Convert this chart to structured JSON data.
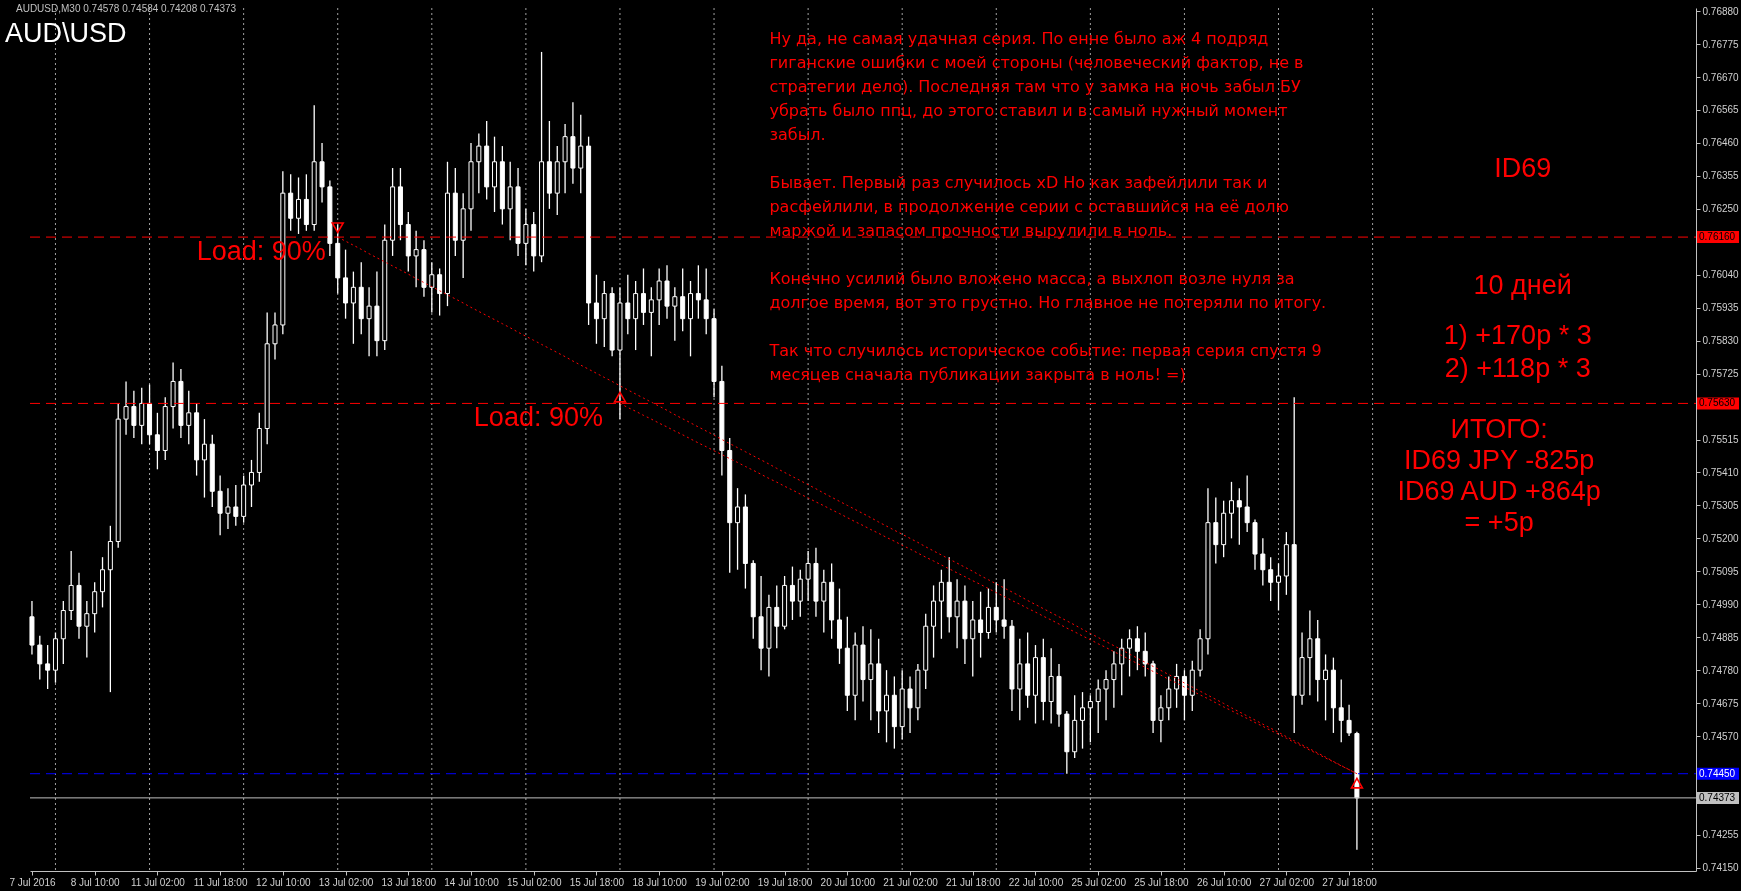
{
  "chart_data": {
    "type": "candlestick",
    "title": "AUD\\USD",
    "subtitle": "AUDUSD,M30 0.74578 0.74584 0.74208 0.74373",
    "categories": [
      "7 Jul 2016",
      null,
      null,
      null,
      null,
      null,
      null,
      null,
      "8 Jul 10:00",
      null,
      null,
      null,
      null,
      null,
      null,
      null,
      "11 Jul 02:00",
      null,
      null,
      null,
      null,
      null,
      null,
      null,
      "11 Jul 18:00",
      null,
      null,
      null,
      null,
      null,
      null,
      null,
      "12 Jul 10:00",
      null,
      null,
      null,
      null,
      null,
      null,
      null,
      "13 Jul 02:00",
      null,
      null,
      null,
      null,
      null,
      null,
      null,
      "13 Jul 18:00",
      null,
      null,
      null,
      null,
      null,
      null,
      null,
      "14 Jul 10:00",
      null,
      null,
      null,
      null,
      null,
      null,
      null,
      "15 Jul 02:00",
      null,
      null,
      null,
      null,
      null,
      null,
      null,
      "15 Jul 18:00",
      null,
      null,
      null,
      null,
      null,
      null,
      null,
      "18 Jul 10:00",
      null,
      null,
      null,
      null,
      null,
      null,
      null,
      "19 Jul 02:00",
      null,
      null,
      null,
      null,
      null,
      null,
      null,
      "19 Jul 18:00",
      null,
      null,
      null,
      null,
      null,
      null,
      null,
      "20 Jul 10:00",
      null,
      null,
      null,
      null,
      null,
      null,
      null,
      "21 Jul 02:00",
      null,
      null,
      null,
      null,
      null,
      null,
      null,
      "21 Jul 18:00",
      null,
      null,
      null,
      null,
      null,
      null,
      null,
      "22 Jul 10:00",
      null,
      null,
      null,
      null,
      null,
      null,
      null,
      "25 Jul 02:00",
      null,
      null,
      null,
      null,
      null,
      null,
      null,
      "25 Jul 18:00",
      null,
      null,
      null,
      null,
      null,
      null,
      null,
      "26 Jul 10:00",
      null,
      null,
      null,
      null,
      null,
      null,
      null,
      "27 Jul 02:00",
      null,
      null,
      null,
      null,
      null,
      null,
      null,
      "27 Jul 18:00",
      null,
      null,
      null,
      null,
      null,
      null,
      null,
      null,
      null,
      null,
      null,
      null,
      null,
      null,
      null,
      null,
      null,
      null,
      null,
      null,
      null,
      null,
      null,
      null,
      null,
      null,
      null,
      null,
      null,
      null,
      null,
      null,
      null,
      null,
      null,
      null,
      null,
      null,
      null,
      null,
      null,
      null,
      null,
      null
    ],
    "ylim": [
      0.7414,
      0.7689
    ],
    "yticks": [
      {
        "value": 0.7415,
        "label": "0.74150"
      },
      0.74255,
      {
        "value": 0.7436,
        "label": null
      },
      {
        "value": 0.74465,
        "label": null
      },
      {
        "value": 0.7457,
        "label": "0.74570"
      },
      0.74675,
      {
        "value": 0.7478,
        "label": "0.74780"
      },
      0.74885,
      {
        "value": 0.7499,
        "label": "0.74990"
      },
      0.75095,
      {
        "value": 0.752,
        "label": "0.75200"
      },
      0.75305,
      {
        "value": 0.7541,
        "label": "0.75410"
      },
      0.75515,
      {
        "value": 0.7562,
        "label": null
      },
      0.75725,
      {
        "value": 0.7583,
        "label": "0.75830"
      },
      0.75935,
      {
        "value": 0.7604,
        "label": "0.76040"
      },
      {
        "value": 0.76145,
        "label": null
      },
      {
        "value": 0.7625,
        "label": "0.76250"
      },
      0.76355,
      {
        "value": 0.7646,
        "label": "0.76460"
      },
      0.76565,
      {
        "value": 0.7667,
        "label": "0.76670"
      },
      0.76775,
      {
        "value": 0.7688,
        "label": "0.76880"
      }
    ],
    "series": [
      {
        "color": "#ffffff",
        "ohlc": [
          [
            0.7495,
            0.75,
            0.7483,
            0.7486
          ],
          [
            0.7486,
            0.7489,
            0.7475,
            0.748
          ],
          [
            0.748,
            0.7486,
            0.7472,
            0.7478
          ],
          [
            0.7478,
            0.749,
            0.7474,
            0.7488
          ],
          [
            0.7488,
            0.75,
            0.748,
            0.7497
          ],
          [
            0.7497,
            0.7516,
            0.7494,
            0.7505
          ],
          [
            0.7505,
            0.7509,
            0.7488,
            0.7492
          ],
          [
            0.7492,
            0.75,
            0.7482,
            0.7496
          ],
          [
            0.7496,
            0.7506,
            0.749,
            0.7503
          ],
          [
            0.7503,
            0.7514,
            0.7498,
            0.751
          ],
          [
            0.751,
            0.7524,
            0.7471,
            0.7519
          ],
          [
            0.7519,
            0.7563,
            0.7517,
            0.7558
          ],
          [
            0.7558,
            0.757,
            0.7553,
            0.7562
          ],
          [
            0.7562,
            0.7567,
            0.7552,
            0.7556
          ],
          [
            0.7556,
            0.7568,
            0.755,
            0.7563
          ],
          [
            0.7563,
            0.7569,
            0.755,
            0.7553
          ],
          [
            0.7553,
            0.756,
            0.7542,
            0.7548
          ],
          [
            0.7548,
            0.7565,
            0.7545,
            0.7562
          ],
          [
            0.7562,
            0.7576,
            0.7555,
            0.757
          ],
          [
            0.757,
            0.7574,
            0.7552,
            0.7556
          ],
          [
            0.7556,
            0.7567,
            0.755,
            0.756
          ],
          [
            0.756,
            0.7563,
            0.754,
            0.7545
          ],
          [
            0.7545,
            0.7558,
            0.7533,
            0.755
          ],
          [
            0.755,
            0.7553,
            0.753,
            0.7535
          ],
          [
            0.7535,
            0.754,
            0.7521,
            0.7528
          ],
          [
            0.7528,
            0.7536,
            0.7523,
            0.753
          ],
          [
            0.753,
            0.7537,
            0.7524,
            0.7527
          ],
          [
            0.7527,
            0.754,
            0.7525,
            0.7537
          ],
          [
            0.7537,
            0.7545,
            0.753,
            0.7541
          ],
          [
            0.7541,
            0.756,
            0.7538,
            0.7555
          ],
          [
            0.7555,
            0.7592,
            0.755,
            0.7582
          ],
          [
            0.7582,
            0.7592,
            0.7577,
            0.7588
          ],
          [
            0.7588,
            0.7637,
            0.7585,
            0.763
          ],
          [
            0.763,
            0.7636,
            0.7618,
            0.7622
          ],
          [
            0.7622,
            0.7635,
            0.7617,
            0.7628
          ],
          [
            0.7628,
            0.7636,
            0.7618,
            0.762
          ],
          [
            0.762,
            0.7658,
            0.7618,
            0.764
          ],
          [
            0.764,
            0.7646,
            0.7627,
            0.7632
          ],
          [
            0.7632,
            0.7634,
            0.761,
            0.7614
          ],
          [
            0.7614,
            0.762,
            0.7598,
            0.7603
          ],
          [
            0.7603,
            0.7612,
            0.759,
            0.7595
          ],
          [
            0.7595,
            0.7605,
            0.7582,
            0.76
          ],
          [
            0.76,
            0.7608,
            0.7585,
            0.759
          ],
          [
            0.759,
            0.76,
            0.7578,
            0.7594
          ],
          [
            0.7594,
            0.7605,
            0.7578,
            0.7583
          ],
          [
            0.7583,
            0.762,
            0.758,
            0.7615
          ],
          [
            0.7615,
            0.7638,
            0.761,
            0.7632
          ],
          [
            0.7632,
            0.7638,
            0.7615,
            0.762
          ],
          [
            0.762,
            0.7624,
            0.7605,
            0.761
          ],
          [
            0.761,
            0.7618,
            0.76,
            0.7612
          ],
          [
            0.7612,
            0.7615,
            0.7597,
            0.76
          ],
          [
            0.76,
            0.7608,
            0.7592,
            0.7604
          ],
          [
            0.7604,
            0.7606,
            0.7591,
            0.7598
          ],
          [
            0.7598,
            0.764,
            0.7594,
            0.763
          ],
          [
            0.763,
            0.7638,
            0.761,
            0.7615
          ],
          [
            0.7615,
            0.763,
            0.7603,
            0.7625
          ],
          [
            0.7625,
            0.7646,
            0.7618,
            0.764
          ],
          [
            0.764,
            0.7649,
            0.763,
            0.7645
          ],
          [
            0.7645,
            0.7653,
            0.7628,
            0.7632
          ],
          [
            0.7632,
            0.7648,
            0.7624,
            0.764
          ],
          [
            0.764,
            0.7645,
            0.762,
            0.7625
          ],
          [
            0.7625,
            0.764,
            0.7615,
            0.7632
          ],
          [
            0.7632,
            0.7638,
            0.761,
            0.7614
          ],
          [
            0.7614,
            0.7625,
            0.7607,
            0.762
          ],
          [
            0.762,
            0.7624,
            0.7605,
            0.761
          ],
          [
            0.761,
            0.7675,
            0.7608,
            0.764
          ],
          [
            0.764,
            0.7653,
            0.7625,
            0.763
          ],
          [
            0.763,
            0.7645,
            0.7623,
            0.764
          ],
          [
            0.764,
            0.7652,
            0.763,
            0.7648
          ],
          [
            0.7648,
            0.7659,
            0.7633,
            0.7638
          ],
          [
            0.7638,
            0.7655,
            0.763,
            0.7645
          ],
          [
            0.7645,
            0.7648,
            0.7588,
            0.7595
          ],
          [
            0.7595,
            0.7604,
            0.7582,
            0.759
          ],
          [
            0.759,
            0.7602,
            0.7581,
            0.7598
          ],
          [
            0.7598,
            0.76,
            0.7578,
            0.758
          ],
          [
            0.758,
            0.76,
            0.7558,
            0.7595
          ],
          [
            0.7595,
            0.7604,
            0.7585,
            0.759
          ],
          [
            0.759,
            0.7602,
            0.758,
            0.7598
          ],
          [
            0.7598,
            0.7606,
            0.7588,
            0.7592
          ],
          [
            0.7592,
            0.76,
            0.7578,
            0.7596
          ],
          [
            0.7596,
            0.7606,
            0.7588,
            0.7602
          ],
          [
            0.7602,
            0.7607,
            0.759,
            0.7594
          ],
          [
            0.7594,
            0.76,
            0.7583,
            0.7597
          ],
          [
            0.7597,
            0.7606,
            0.7586,
            0.759
          ],
          [
            0.759,
            0.7602,
            0.7578,
            0.7598
          ],
          [
            0.7598,
            0.7607,
            0.759,
            0.7596
          ],
          [
            0.7596,
            0.7606,
            0.7585,
            0.759
          ],
          [
            0.759,
            0.7593,
            0.7565,
            0.757
          ],
          [
            0.757,
            0.7575,
            0.754,
            0.7548
          ],
          [
            0.7548,
            0.7552,
            0.7509,
            0.7525
          ],
          [
            0.7525,
            0.7536,
            0.751,
            0.753
          ],
          [
            0.753,
            0.7534,
            0.7504,
            0.7512
          ],
          [
            0.7512,
            0.7513,
            0.7488,
            0.7495
          ],
          [
            0.7495,
            0.7508,
            0.7478,
            0.7485
          ],
          [
            0.7485,
            0.7502,
            0.7476,
            0.7498
          ],
          [
            0.7498,
            0.7505,
            0.7485,
            0.7492
          ],
          [
            0.7492,
            0.7508,
            0.7491,
            0.7505
          ],
          [
            0.7505,
            0.7511,
            0.7494,
            0.75
          ],
          [
            0.75,
            0.751,
            0.7495,
            0.7507
          ],
          [
            0.7507,
            0.7516,
            0.75,
            0.7512
          ],
          [
            0.7512,
            0.7517,
            0.7495,
            0.75
          ],
          [
            0.75,
            0.751,
            0.749,
            0.7506
          ],
          [
            0.7506,
            0.7512,
            0.7488,
            0.7494
          ],
          [
            0.7494,
            0.7504,
            0.748,
            0.7485
          ],
          [
            0.7485,
            0.7495,
            0.7465,
            0.747
          ],
          [
            0.747,
            0.749,
            0.7462,
            0.7486
          ],
          [
            0.7486,
            0.7492,
            0.7468,
            0.7475
          ],
          [
            0.7475,
            0.7491,
            0.7462,
            0.748
          ],
          [
            0.748,
            0.7488,
            0.7458,
            0.7465
          ],
          [
            0.7465,
            0.7478,
            0.7455,
            0.747
          ],
          [
            0.747,
            0.7476,
            0.7453,
            0.746
          ],
          [
            0.746,
            0.7478,
            0.7456,
            0.7472
          ],
          [
            0.7472,
            0.7476,
            0.7458,
            0.7466
          ],
          [
            0.7466,
            0.748,
            0.7462,
            0.7478
          ],
          [
            0.7478,
            0.7496,
            0.7472,
            0.7492
          ],
          [
            0.7492,
            0.7505,
            0.7482,
            0.75
          ],
          [
            0.75,
            0.751,
            0.7488,
            0.7506
          ],
          [
            0.7506,
            0.7514,
            0.749,
            0.7495
          ],
          [
            0.7495,
            0.7507,
            0.7485,
            0.75
          ],
          [
            0.75,
            0.7505,
            0.748,
            0.7488
          ],
          [
            0.7488,
            0.75,
            0.7476,
            0.7494
          ],
          [
            0.7494,
            0.7503,
            0.7482,
            0.749
          ],
          [
            0.749,
            0.7504,
            0.7488,
            0.7498
          ],
          [
            0.7498,
            0.7506,
            0.749,
            0.7494
          ],
          [
            0.7494,
            0.7507,
            0.7488,
            0.7492
          ],
          [
            0.7492,
            0.7494,
            0.7465,
            0.7472
          ],
          [
            0.7472,
            0.7488,
            0.7462,
            0.748
          ],
          [
            0.748,
            0.749,
            0.7466,
            0.747
          ],
          [
            0.747,
            0.7486,
            0.7461,
            0.7482
          ],
          [
            0.7482,
            0.7488,
            0.7462,
            0.7468
          ],
          [
            0.7468,
            0.7485,
            0.7461,
            0.7476
          ],
          [
            0.7476,
            0.748,
            0.746,
            0.7464
          ],
          [
            0.7464,
            0.7465,
            0.7445,
            0.7452
          ],
          [
            0.7452,
            0.747,
            0.745,
            0.7462
          ],
          [
            0.7462,
            0.7471,
            0.7453,
            0.7466
          ],
          [
            0.7466,
            0.747,
            0.7455,
            0.7468
          ],
          [
            0.7468,
            0.7475,
            0.7458,
            0.7472
          ],
          [
            0.7472,
            0.7478,
            0.7462,
            0.7475
          ],
          [
            0.7475,
            0.7484,
            0.7466,
            0.748
          ],
          [
            0.748,
            0.7488,
            0.747,
            0.7485
          ],
          [
            0.7485,
            0.7491,
            0.7476,
            0.7488
          ],
          [
            0.7488,
            0.7492,
            0.7478,
            0.7484
          ],
          [
            0.7484,
            0.749,
            0.7476,
            0.748
          ],
          [
            0.748,
            0.7481,
            0.7458,
            0.7462
          ],
          [
            0.7462,
            0.747,
            0.7455,
            0.7466
          ],
          [
            0.7466,
            0.7476,
            0.7462,
            0.7472
          ],
          [
            0.7472,
            0.748,
            0.7466,
            0.7476
          ],
          [
            0.7476,
            0.7478,
            0.7462,
            0.747
          ],
          [
            0.747,
            0.7481,
            0.7465,
            0.7478
          ],
          [
            0.7478,
            0.7491,
            0.7476,
            0.7488
          ],
          [
            0.7488,
            0.7536,
            0.7483,
            0.7525
          ],
          [
            0.7525,
            0.7533,
            0.7512,
            0.7518
          ],
          [
            0.7518,
            0.7532,
            0.7514,
            0.7528
          ],
          [
            0.7528,
            0.7538,
            0.752,
            0.7532
          ],
          [
            0.7532,
            0.7536,
            0.7518,
            0.753
          ],
          [
            0.753,
            0.754,
            0.7522,
            0.7525
          ],
          [
            0.7525,
            0.7526,
            0.751,
            0.7515
          ],
          [
            0.7515,
            0.752,
            0.7505,
            0.751
          ],
          [
            0.751,
            0.7514,
            0.75,
            0.7506
          ],
          [
            0.7506,
            0.7512,
            0.7497,
            0.7508
          ],
          [
            0.7508,
            0.7522,
            0.7502,
            0.7518
          ],
          [
            0.7518,
            0.7565,
            0.7458,
            0.747
          ],
          [
            0.747,
            0.749,
            0.7467,
            0.7482
          ],
          [
            0.7482,
            0.7497,
            0.747,
            0.7488
          ],
          [
            0.7488,
            0.7494,
            0.7468,
            0.7475
          ],
          [
            0.7475,
            0.7483,
            0.7462,
            0.7478
          ],
          [
            0.7478,
            0.7482,
            0.7458,
            0.7466
          ],
          [
            0.7466,
            0.7475,
            0.7455,
            0.7462
          ],
          [
            0.7462,
            0.7467,
            0.7457,
            0.7458
          ],
          [
            0.74578,
            0.74584,
            0.74208,
            0.74373
          ],
          null,
          null,
          null,
          null,
          null,
          null,
          null,
          null,
          null,
          null,
          null,
          null,
          null,
          null,
          null,
          null,
          null,
          null,
          null,
          null,
          null,
          null,
          null,
          null,
          null,
          null,
          null,
          null,
          null,
          null,
          null,
          null,
          null,
          null,
          null,
          null,
          null,
          null,
          null,
          null,
          null,
          null,
          null
        ]
      },
      {
        "type": "line",
        "color": "#ff0000",
        "line_style": "dotted",
        "values": [
          null,
          null,
          null,
          null,
          null,
          null,
          null,
          null,
          null,
          null,
          null,
          null,
          null,
          null,
          null,
          null,
          null,
          null,
          null,
          null,
          null,
          null,
          null,
          null,
          null,
          null,
          null,
          null,
          null,
          null,
          null,
          null,
          null,
          null,
          null,
          null,
          null,
          null,
          null,
          0.7616,
          0.76147,
          0.76134,
          0.76121,
          0.76107,
          0.76094,
          0.76081,
          0.76068,
          0.76055,
          0.76042,
          0.76028,
          0.76015,
          0.76002,
          0.75989,
          0.75976,
          0.75963,
          0.7595,
          0.75936,
          0.75923,
          0.7591,
          0.75897,
          0.75884,
          0.75871,
          0.75857,
          0.75844,
          0.75831,
          0.75818,
          0.75805,
          0.75792,
          0.75779,
          0.75765,
          0.75752,
          0.75739,
          0.75726,
          0.75713,
          0.757,
          0.75686,
          0.75673,
          0.7566,
          0.75647,
          0.75634,
          0.75621,
          0.75608,
          0.75594,
          0.75581,
          0.75568,
          0.75555,
          0.75542,
          0.75529,
          0.75515,
          0.75502,
          0.75489,
          0.75476,
          0.75463,
          0.7545,
          0.75437,
          0.75423,
          0.7541,
          0.75397,
          0.75384,
          0.75371,
          0.75358,
          0.75344,
          0.75331,
          0.75318,
          0.75305,
          0.75292,
          0.75279,
          0.75266,
          0.75252,
          0.75239,
          0.75226,
          0.75213,
          0.752,
          0.75187,
          0.75173,
          0.7516,
          0.75147,
          0.75134,
          0.75121,
          0.75108,
          0.75095,
          0.75081,
          0.75068,
          0.75055,
          0.75042,
          0.75029,
          0.75016,
          0.75002,
          0.74989,
          0.74976,
          0.74963,
          0.7495,
          0.74937,
          0.74924,
          0.7491,
          0.74897,
          0.74884,
          0.74871,
          0.74858,
          0.74845,
          0.74831,
          0.74818,
          0.74805,
          0.74792,
          0.74779,
          0.74766,
          0.74753,
          0.74739,
          0.74726,
          0.74713,
          0.747,
          0.74687,
          0.74674,
          0.7466,
          0.74647,
          0.74634,
          0.74621,
          0.74608,
          0.74595,
          0.74582,
          0.74568,
          0.74555,
          0.74542,
          0.74529,
          0.74516,
          0.74503,
          0.74489,
          0.74476,
          0.74463,
          0.7445,
          null,
          null,
          null,
          null,
          null,
          null,
          null,
          null,
          null,
          null,
          null,
          null,
          null,
          null,
          null,
          null,
          null,
          null,
          null,
          null,
          null,
          null,
          null,
          null,
          null,
          null,
          null,
          null,
          null,
          null,
          null,
          null,
          null,
          null,
          null,
          null,
          null,
          null,
          null,
          null,
          null,
          null,
          null
        ]
      },
      {
        "type": "line",
        "color": "#ff0000",
        "line_style": "dotted",
        "values": [
          null,
          null,
          null,
          null,
          null,
          null,
          null,
          null,
          null,
          null,
          null,
          null,
          null,
          null,
          null,
          null,
          null,
          null,
          null,
          null,
          null,
          null,
          null,
          null,
          null,
          null,
          null,
          null,
          null,
          null,
          null,
          null,
          null,
          null,
          null,
          null,
          null,
          null,
          null,
          null,
          null,
          null,
          null,
          null,
          null,
          null,
          null,
          null,
          null,
          null,
          null,
          null,
          null,
          null,
          null,
          null,
          null,
          null,
          null,
          null,
          null,
          null,
          null,
          null,
          null,
          null,
          null,
          null,
          null,
          null,
          null,
          null,
          null,
          null,
          null,
          0.7563,
          0.75617,
          0.75605,
          0.75592,
          0.7558,
          0.75567,
          0.75555,
          0.75542,
          0.7553,
          0.75517,
          0.75504,
          0.75492,
          0.75479,
          0.75467,
          0.75454,
          0.75442,
          0.75429,
          0.75417,
          0.75404,
          0.75391,
          0.75379,
          0.75366,
          0.75354,
          0.75341,
          0.75329,
          0.75316,
          0.75304,
          0.75291,
          0.75279,
          0.75266,
          0.75253,
          0.75241,
          0.75228,
          0.75216,
          0.75203,
          0.75191,
          0.75178,
          0.75166,
          0.75153,
          0.7514,
          0.75128,
          0.75115,
          0.75103,
          0.7509,
          0.75078,
          0.75065,
          0.75053,
          0.7504,
          0.75027,
          0.75015,
          0.75002,
          0.7499,
          0.74977,
          0.74965,
          0.74952,
          0.7494,
          0.74927,
          0.74914,
          0.74902,
          0.74889,
          0.74877,
          0.74864,
          0.74852,
          0.74839,
          0.74827,
          0.74814,
          0.74801,
          0.74789,
          0.74776,
          0.74764,
          0.74751,
          0.74739,
          0.74726,
          0.74714,
          0.74701,
          0.74689,
          0.74676,
          0.74663,
          0.74651,
          0.74638,
          0.74626,
          0.74613,
          0.74601,
          0.74588,
          0.74576,
          0.74563,
          0.7455,
          0.74538,
          0.74525,
          0.74513,
          0.745,
          0.74488,
          0.74475,
          0.74463,
          0.7445,
          null,
          null,
          null,
          null,
          null,
          null,
          null,
          null,
          null,
          null,
          null,
          null,
          null,
          null,
          null,
          null,
          null,
          null,
          null,
          null,
          null,
          null,
          null,
          null,
          null,
          null,
          null,
          null,
          null,
          null,
          null,
          null,
          null,
          null,
          null,
          null,
          null,
          null,
          null,
          null,
          null,
          null,
          null
        ]
      },
      {
        "type": "scatter",
        "color": "#ff0000",
        "marker": "triangle",
        "values": [
          null,
          null,
          null,
          null,
          null,
          null,
          null,
          null,
          null,
          null,
          null,
          null,
          null,
          null,
          null,
          null,
          null,
          null,
          null,
          null,
          null,
          null,
          null,
          null,
          null,
          null,
          null,
          null,
          null,
          null,
          null,
          null,
          null,
          null,
          null,
          null,
          null,
          null,
          null,
          0.7619,
          null,
          null,
          null,
          null,
          null,
          null,
          null,
          null,
          null,
          null,
          null,
          null,
          null,
          null,
          null,
          null,
          null,
          null,
          null,
          null,
          null,
          null,
          null,
          null,
          null,
          null,
          null,
          null,
          null,
          null,
          null,
          null,
          null,
          null,
          null,
          0.7565,
          null,
          null,
          null,
          null,
          null,
          null,
          null,
          null,
          null,
          null,
          null,
          null,
          null,
          null,
          null,
          null,
          null,
          null,
          null,
          null,
          null,
          null,
          null,
          null,
          null,
          null,
          null,
          null,
          null,
          null,
          null,
          null,
          null,
          null,
          null,
          null,
          null,
          null,
          null,
          null,
          null,
          null,
          null,
          null,
          null,
          null,
          null,
          null,
          null,
          null,
          null,
          null,
          null,
          null,
          null,
          null,
          null,
          null,
          null,
          null,
          null,
          null,
          null,
          null,
          null,
          null,
          null,
          null,
          null,
          null,
          null,
          null,
          null,
          null,
          null,
          null,
          null,
          null,
          null,
          null,
          null,
          null,
          null,
          null,
          null,
          null,
          null,
          null,
          null,
          null,
          null,
          null,
          null,
          null,
          null,
          null,
          null,
          null,
          null,
          null,
          null,
          null,
          null,
          null,
          null,
          null,
          null,
          null,
          null,
          null,
          null,
          null,
          null,
          null,
          null,
          null,
          null,
          null,
          null,
          null,
          null,
          null,
          null,
          null,
          null,
          null,
          null,
          null,
          null,
          null,
          null,
          null,
          null,
          null,
          null,
          null,
          null
        ]
      },
      {
        "type": "scatter",
        "color": "#ff0000",
        "marker": "triangle",
        "values": [
          null,
          null,
          null,
          null,
          null,
          null,
          null,
          null,
          null,
          null,
          null,
          null,
          null,
          null,
          null,
          null,
          null,
          null,
          null,
          null,
          null,
          null,
          null,
          null,
          null,
          null,
          null,
          null,
          null,
          null,
          null,
          null,
          null,
          null,
          null,
          null,
          null,
          null,
          null,
          null,
          null,
          null,
          null,
          null,
          null,
          null,
          null,
          null,
          null,
          null,
          null,
          null,
          null,
          null,
          null,
          null,
          null,
          null,
          null,
          null,
          null,
          null,
          null,
          null,
          null,
          null,
          null,
          null,
          null,
          null,
          null,
          null,
          null,
          null,
          null,
          null,
          null,
          null,
          null,
          null,
          null,
          null,
          null,
          null,
          null,
          null,
          null,
          null,
          null,
          null,
          null,
          null,
          null,
          null,
          null,
          null,
          null,
          null,
          null,
          null,
          null,
          null,
          null,
          null,
          null,
          null,
          null,
          null,
          null,
          null,
          null,
          null,
          null,
          null,
          null,
          null,
          null,
          null,
          null,
          null,
          null,
          null,
          null,
          null,
          null,
          null,
          null,
          null,
          null,
          null,
          null,
          null,
          null,
          null,
          null,
          null,
          null,
          null,
          null,
          null,
          null,
          null,
          null,
          null,
          null,
          null,
          null,
          null,
          null,
          null,
          null,
          null,
          null,
          null,
          null,
          null,
          null,
          null,
          null,
          null,
          null,
          null,
          null,
          null,
          null,
          null,
          null,
          null,
          null,
          0.7442,
          null,
          null,
          null,
          null,
          null,
          null,
          null,
          null,
          null,
          null,
          null,
          null,
          null,
          null,
          null,
          null,
          null,
          null,
          null,
          null,
          null,
          null,
          null,
          null,
          null,
          null,
          null,
          null,
          null,
          null,
          null,
          null,
          null,
          null,
          null,
          null,
          null,
          null,
          null,
          null,
          null,
          null,
          null
        ]
      }
    ],
    "ref_lines": [
      {
        "axis": "y",
        "value": 0.7616,
        "label": "0.76160",
        "color": "#ff0000",
        "line_style": "dashed"
      },
      {
        "axis": "y",
        "value": 0.7563,
        "label": "0.75630",
        "color": "#ff0000",
        "line_style": "dashed"
      },
      {
        "axis": "y",
        "value": 0.7445,
        "label": "0.74450",
        "color": "#0000ff",
        "line_style": "dashed"
      },
      {
        "axis": "y",
        "value": 0.74373,
        "label": "0.74373",
        "color": "#c0c0c0",
        "line_style": "solid"
      }
    ],
    "annotations": [
      "Ну да, не самая удачная серия. По енне было аж 4 подряд\nгиганские ошибки с моей стороны (человеческий фактор, не в\nстратегии дело). Последняя там что у замка на ночь забыл БУ\nубрать было ппц, до этого ставил и в самый нужный момент\nзабыл.",
      "Бывает. Первый раз случилось xD Но как зафейлили так и\nрасфейлили, в продолжение серии с оставшийся на её долю\nмаржой и запасом прочности вырулили в ноль.",
      "Конечно усилий было вложено масса, а выхлоп возле нуля за\nдолгое время, вот это грустно. Но главное не потеряли по итогу.",
      "Так что случилось историческое событие: первая серия спустя 9\nмесяцев сначала публикации закрыта в ноль! =)",
      "ID69",
      "10 дней",
      "1) +170p * 3\n2) +118p * 3",
      "ИТОГО:\nID69 JPY -825p\nID69 AUD +864p\n= +5p",
      {
        "text": "Load: 90%",
        "y": 0.7616
      },
      {
        "text": "Load: 90%",
        "y": 0.7563
      }
    ]
  }
}
